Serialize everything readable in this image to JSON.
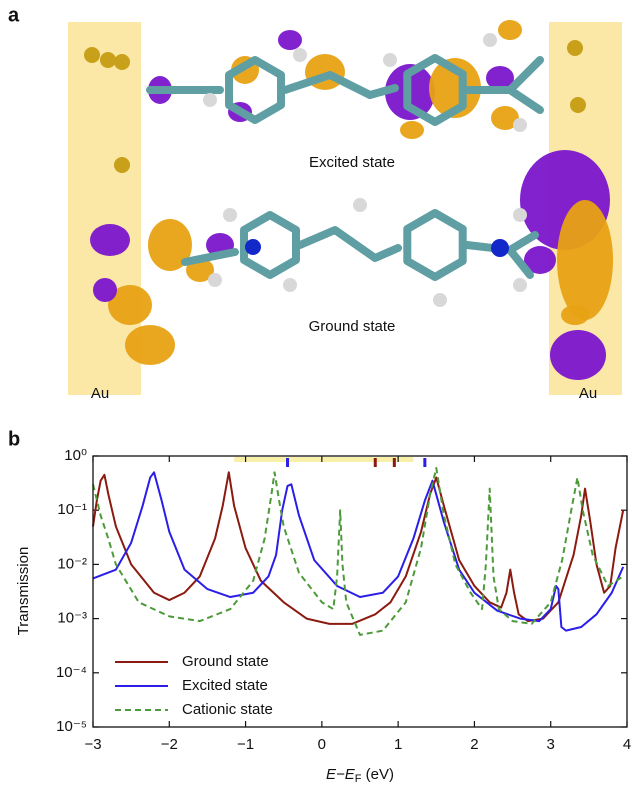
{
  "panel_a": {
    "label": "a",
    "excited_label": "Excited state",
    "ground_label": "Ground state",
    "electrodes": [
      "Au",
      "Au"
    ]
  },
  "chart_data": {
    "type": "line",
    "panel_label": "b",
    "ylabel": "Transmission",
    "xlabel": {
      "main": "E−E",
      "subscript": "F",
      "unit": " (eV)"
    },
    "xlim": [
      -3,
      4
    ],
    "ylim": [
      1e-05,
      1
    ],
    "yscale": "log",
    "xticks": [
      {
        "value": -3,
        "label": "−3"
      },
      {
        "value": -2,
        "label": "−2"
      },
      {
        "value": -1,
        "label": "−1"
      },
      0,
      1,
      2,
      3,
      4
    ],
    "yticks": [
      {
        "value": 1e-05,
        "label": "10⁻⁵"
      },
      {
        "value": 0.0001,
        "label": "10⁻⁴"
      },
      {
        "value": 0.001,
        "label": "10⁻³"
      },
      {
        "value": 0.01,
        "label": "10⁻²"
      },
      {
        "value": 0.1,
        "label": "10⁻¹"
      },
      {
        "value": 1,
        "label": "10⁰"
      }
    ],
    "legend": "lower left",
    "highlight": {
      "range": [
        -1.15,
        1.2
      ],
      "color": "#f8f0a8"
    },
    "markers": [
      {
        "x": -0.45,
        "color": "#2a1ee8"
      },
      {
        "x": 0.7,
        "color": "#8b1a10"
      },
      {
        "x": 0.95,
        "color": "#8b1a10"
      },
      {
        "x": 1.35,
        "color": "#2a1ee8"
      }
    ],
    "series": [
      {
        "name": "Ground state",
        "color": "#8b1a10",
        "dash": false,
        "x": [
          -3,
          -2.95,
          -2.9,
          -2.85,
          -2.8,
          -2.7,
          -2.5,
          -2.2,
          -2.0,
          -1.8,
          -1.6,
          -1.4,
          -1.3,
          -1.22,
          -1.15,
          -1.0,
          -0.8,
          -0.5,
          -0.2,
          0.1,
          0.4,
          0.7,
          0.9,
          1.1,
          1.3,
          1.42,
          1.5,
          1.6,
          1.8,
          2.0,
          2.2,
          2.35,
          2.42,
          2.47,
          2.52,
          2.58,
          2.7,
          2.9,
          3.1,
          3.3,
          3.4,
          3.45,
          3.52,
          3.6,
          3.7,
          3.78,
          3.85,
          3.95
        ],
        "values": [
          0.05,
          0.15,
          0.35,
          0.45,
          0.2,
          0.05,
          0.01,
          0.003,
          0.0022,
          0.003,
          0.006,
          0.03,
          0.12,
          0.5,
          0.12,
          0.02,
          0.005,
          0.002,
          0.001,
          0.0008,
          0.0008,
          0.0012,
          0.002,
          0.006,
          0.04,
          0.2,
          0.4,
          0.12,
          0.012,
          0.004,
          0.002,
          0.0016,
          0.003,
          0.008,
          0.003,
          0.0012,
          0.0009,
          0.001,
          0.002,
          0.015,
          0.08,
          0.25,
          0.06,
          0.01,
          0.003,
          0.004,
          0.02,
          0.1
        ]
      },
      {
        "name": "Excited state",
        "color": "#2a1ee8",
        "dash": false,
        "x": [
          -3,
          -2.7,
          -2.5,
          -2.35,
          -2.25,
          -2.2,
          -2.1,
          -2.0,
          -1.8,
          -1.5,
          -1.2,
          -0.9,
          -0.7,
          -0.6,
          -0.52,
          -0.45,
          -0.4,
          -0.3,
          -0.1,
          0.2,
          0.5,
          0.8,
          1.0,
          1.2,
          1.35,
          1.45,
          1.6,
          1.8,
          2.0,
          2.3,
          2.6,
          2.85,
          3.0,
          3.07,
          3.1,
          3.14,
          3.2,
          3.4,
          3.6,
          3.8,
          3.95
        ],
        "values": [
          0.0055,
          0.008,
          0.025,
          0.12,
          0.4,
          0.5,
          0.15,
          0.04,
          0.008,
          0.0035,
          0.0025,
          0.003,
          0.006,
          0.015,
          0.1,
          0.28,
          0.3,
          0.08,
          0.012,
          0.004,
          0.0025,
          0.003,
          0.006,
          0.03,
          0.15,
          0.35,
          0.06,
          0.008,
          0.003,
          0.0014,
          0.001,
          0.0009,
          0.0015,
          0.004,
          0.0035,
          0.0007,
          0.0006,
          0.0007,
          0.0012,
          0.003,
          0.009
        ]
      },
      {
        "name": "Cationic state",
        "color": "#4d9a3a",
        "dash": true,
        "x": [
          -3,
          -2.9,
          -2.8,
          -2.7,
          -2.4,
          -2.0,
          -1.6,
          -1.2,
          -0.9,
          -0.75,
          -0.66,
          -0.62,
          -0.56,
          -0.5,
          -0.3,
          0.0,
          0.15,
          0.2,
          0.24,
          0.27,
          0.32,
          0.5,
          0.8,
          1.1,
          1.3,
          1.42,
          1.5,
          1.6,
          1.75,
          1.95,
          2.1,
          2.15,
          2.2,
          2.25,
          2.32,
          2.5,
          2.75,
          3.0,
          3.15,
          3.28,
          3.35,
          3.42,
          3.55,
          3.75,
          3.95
        ],
        "values": [
          0.3,
          0.08,
          0.03,
          0.01,
          0.002,
          0.0011,
          0.0009,
          0.0015,
          0.005,
          0.03,
          0.2,
          0.5,
          0.15,
          0.05,
          0.007,
          0.002,
          0.0015,
          0.006,
          0.1,
          0.01,
          0.002,
          0.0005,
          0.0006,
          0.002,
          0.02,
          0.2,
          0.6,
          0.08,
          0.01,
          0.003,
          0.0015,
          0.01,
          0.25,
          0.006,
          0.0015,
          0.0009,
          0.0008,
          0.002,
          0.012,
          0.12,
          0.4,
          0.1,
          0.015,
          0.004,
          0.006
        ]
      }
    ]
  }
}
